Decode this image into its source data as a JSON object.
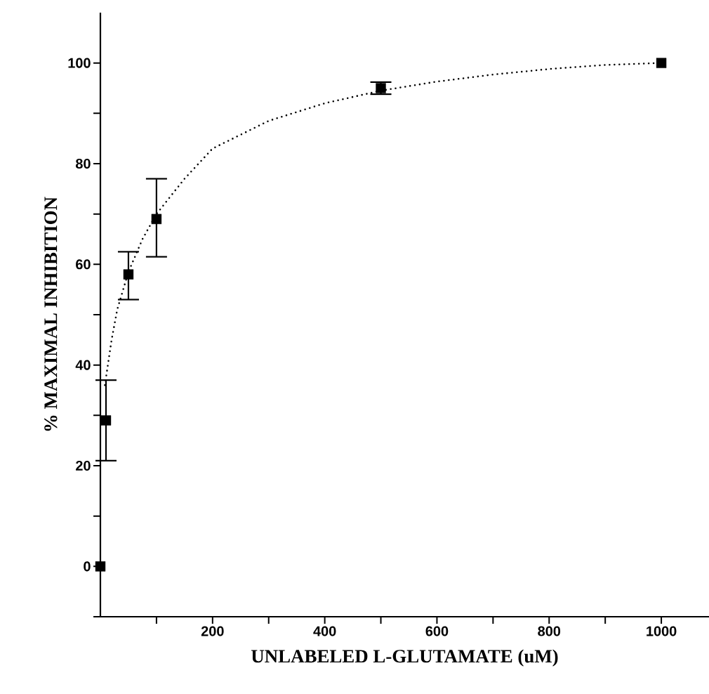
{
  "chart_data": {
    "type": "scatter",
    "xlabel": "UNLABELED L-GLUTAMATE (uM)",
    "ylabel": "% MAXIMAL INHIBITION",
    "xlim": [
      0,
      1085
    ],
    "ylim": [
      -10,
      110
    ],
    "xticks": [
      {
        "value": 100,
        "label": null
      },
      200,
      {
        "value": 300,
        "label": null
      },
      400,
      {
        "value": 500,
        "label": null
      },
      600,
      {
        "value": 700,
        "label": null
      },
      800,
      {
        "value": 900,
        "label": null
      },
      1000
    ],
    "yticks": [
      {
        "value": -10,
        "label": null
      },
      0,
      {
        "value": 10,
        "label": null
      },
      20,
      {
        "value": 30,
        "label": null
      },
      40,
      {
        "value": 50,
        "label": null
      },
      60,
      {
        "value": 70,
        "label": null
      },
      80,
      {
        "value": 90,
        "label": null
      },
      100
    ],
    "marker": "square",
    "series": [
      {
        "type": "line",
        "color": "#000000",
        "marker": "none",
        "line_style": "dotted",
        "x": [
          8,
          20,
          30,
          50,
          75,
          100,
          150,
          200,
          300,
          400,
          500,
          600,
          700,
          800,
          900,
          1000
        ],
        "values": [
          36,
          45,
          51,
          58.5,
          65,
          70,
          77,
          83,
          88.5,
          92,
          94.5,
          96.3,
          97.7,
          98.8,
          99.6,
          100
        ]
      },
      {
        "color": "#000000",
        "x": [
          0,
          10,
          50,
          100,
          500,
          1000
        ],
        "values": [
          0,
          29,
          58,
          69,
          95,
          100
        ],
        "errors": [
          null,
          [
            21,
            37
          ],
          [
            53,
            62.5
          ],
          [
            61.5,
            77
          ],
          [
            93.8,
            96.2
          ],
          null
        ]
      }
    ]
  }
}
